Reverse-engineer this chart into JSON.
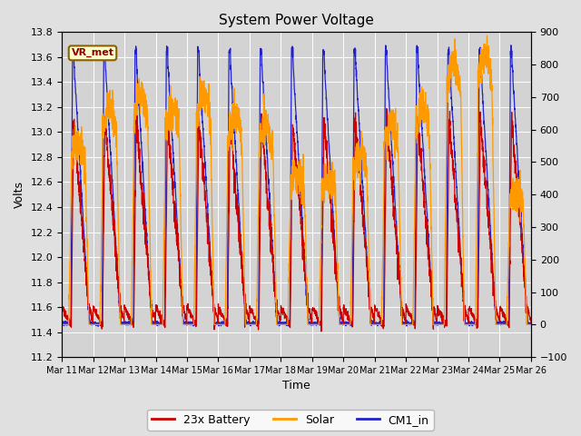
{
  "title": "System Power Voltage",
  "xlabel": "Time",
  "ylabel_left": "Volts",
  "ylim_left": [
    11.2,
    13.8
  ],
  "ylim_right": [
    -100,
    900
  ],
  "yticks_left": [
    11.2,
    11.4,
    11.6,
    11.8,
    12.0,
    12.2,
    12.4,
    12.6,
    12.8,
    13.0,
    13.2,
    13.4,
    13.6,
    13.8
  ],
  "yticks_right": [
    -100,
    0,
    100,
    200,
    300,
    400,
    500,
    600,
    700,
    800,
    900
  ],
  "xtick_labels": [
    "Mar 11",
    "Mar 12",
    "Mar 13",
    "Mar 14",
    "Mar 15",
    "Mar 16",
    "Mar 17",
    "Mar 18",
    "Mar 19",
    "Mar 20",
    "Mar 21",
    "Mar 22",
    "Mar 23",
    "Mar 24",
    "Mar 25",
    "Mar 26"
  ],
  "color_battery": "#cc0000",
  "color_solar": "#ff9900",
  "color_cm1": "#2222cc",
  "legend_labels": [
    "23x Battery",
    "Solar",
    "CM1_in"
  ],
  "vr_met_label": "VR_met",
  "background_color": "#e0e0e0",
  "plot_bg_color": "#d3d3d3",
  "grid_color": "#ffffff",
  "num_days": 15
}
